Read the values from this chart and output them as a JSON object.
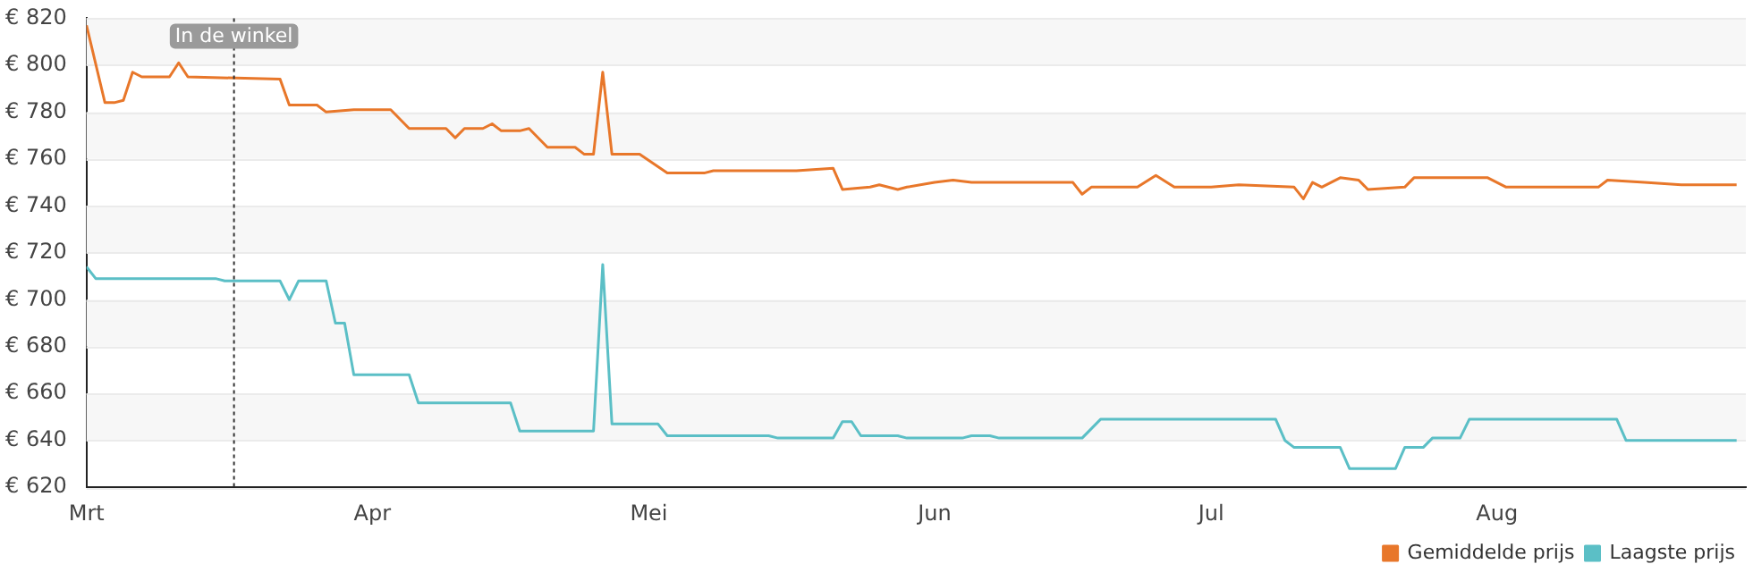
{
  "chart_data": {
    "type": "line",
    "xlim": [
      "--03-01",
      "--08-28"
    ],
    "xticks": [
      {
        "value": "--03-01",
        "label": "Mrt"
      },
      {
        "value": "--04-01",
        "label": "Apr"
      },
      {
        "value": "--05-01",
        "label": "Mei"
      },
      {
        "value": "--06-01",
        "label": "Jun"
      },
      {
        "value": "--07-01",
        "label": "Jul"
      },
      {
        "value": "--08-01",
        "label": "Aug"
      }
    ],
    "ylim": [
      620,
      820
    ],
    "yticks": [
      {
        "value": 620,
        "label": "€ 620"
      },
      {
        "value": 640,
        "label": "€ 640"
      },
      {
        "value": 660,
        "label": "€ 660"
      },
      {
        "value": 680,
        "label": "€ 680"
      },
      {
        "value": 700,
        "label": "€ 700"
      },
      {
        "value": 720,
        "label": "€ 720"
      },
      {
        "value": 740,
        "label": "€ 740"
      },
      {
        "value": 760,
        "label": "€ 760"
      },
      {
        "value": 780,
        "label": "€ 780"
      },
      {
        "value": 800,
        "label": "€ 800"
      },
      {
        "value": 820,
        "label": "€ 820"
      }
    ],
    "grid": "y",
    "legend": "bottom right",
    "marker": "none",
    "line_style": "solid",
    "ref_lines": [
      {
        "axis": "x",
        "value": "--03-17",
        "label": "In de winkel",
        "line_style": "dotted"
      }
    ],
    "series": [
      {
        "name": "Gemiddelde prijs",
        "color": "#e8772a",
        "x": [
          "--03-01",
          "--03-03",
          "--03-04",
          "--03-05",
          "--03-06",
          "--03-07",
          "--03-10",
          "--03-11",
          "--03-12",
          "--03-22",
          "--03-23",
          "--03-26",
          "--03-27",
          "--03-30",
          "--04-03",
          "--04-05",
          "--04-09",
          "--04-10",
          "--04-11",
          "--04-13",
          "--04-14",
          "--04-15",
          "--04-17",
          "--04-18",
          "--04-20",
          "--04-23",
          "--04-24",
          "--04-25",
          "--04-26",
          "--04-27",
          "--04-30",
          "--05-03",
          "--05-07",
          "--05-08",
          "--05-17",
          "--05-21",
          "--05-22",
          "--05-25",
          "--05-26",
          "--05-28",
          "--05-29",
          "--06-01",
          "--06-03",
          "--06-05",
          "--06-16",
          "--06-17",
          "--06-18",
          "--06-23",
          "--06-25",
          "--06-27",
          "--07-01",
          "--07-04",
          "--07-10",
          "--07-11",
          "--07-12",
          "--07-13",
          "--07-15",
          "--07-17",
          "--07-18",
          "--07-22",
          "--07-23",
          "--07-31",
          "--08-02",
          "--08-12",
          "--08-13",
          "--08-17",
          "--08-21",
          "--08-27"
        ],
        "values": [
          817,
          784,
          784,
          785,
          797,
          795,
          795,
          801,
          795,
          794,
          783,
          783,
          780,
          781,
          781,
          773,
          773,
          769,
          773,
          773,
          775,
          772,
          772,
          773,
          765,
          765,
          762,
          762,
          797,
          762,
          762,
          754,
          754,
          755,
          755,
          756,
          747,
          748,
          749,
          747,
          748,
          750,
          751,
          750,
          750,
          745,
          748,
          748,
          753,
          748,
          748,
          749,
          748,
          743,
          750,
          748,
          752,
          751,
          747,
          748,
          752,
          752,
          748,
          748,
          751,
          750,
          749,
          749
        ]
      },
      {
        "name": "Laagste prijs",
        "color": "#5bbfc6",
        "x": [
          "--03-01",
          "--03-02",
          "--03-15",
          "--03-16",
          "--03-22",
          "--03-23",
          "--03-24",
          "--03-27",
          "--03-28",
          "--03-29",
          "--03-30",
          "--04-05",
          "--04-06",
          "--04-16",
          "--04-17",
          "--04-25",
          "--04-26",
          "--04-27",
          "--05-02",
          "--05-03",
          "--05-14",
          "--05-15",
          "--05-21",
          "--05-22",
          "--05-23",
          "--05-24",
          "--05-28",
          "--05-29",
          "--06-04",
          "--06-05",
          "--06-07",
          "--06-08",
          "--06-17",
          "--06-19",
          "--07-08",
          "--07-09",
          "--07-10",
          "--07-15",
          "--07-16",
          "--07-21",
          "--07-22",
          "--07-24",
          "--07-25",
          "--07-28",
          "--07-29",
          "--08-14",
          "--08-15",
          "--08-27"
        ],
        "values": [
          714,
          709,
          709,
          708,
          708,
          700,
          708,
          708,
          690,
          690,
          668,
          668,
          656,
          656,
          644,
          644,
          715,
          647,
          647,
          642,
          642,
          641,
          641,
          648,
          648,
          642,
          642,
          641,
          641,
          642,
          642,
          641,
          641,
          649,
          649,
          640,
          637,
          637,
          628,
          628,
          637,
          637,
          641,
          641,
          649,
          649,
          640,
          640
        ]
      }
    ]
  }
}
